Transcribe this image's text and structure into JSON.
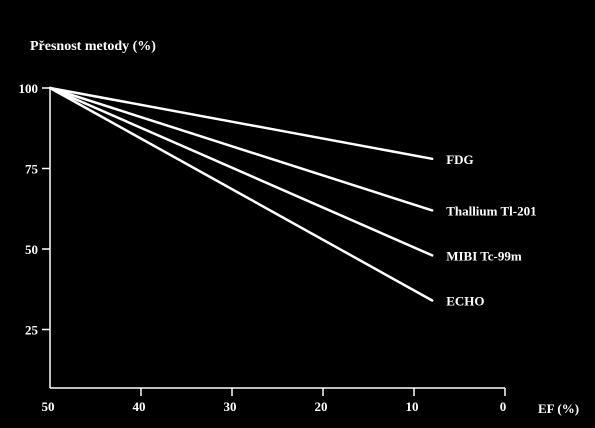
{
  "colors": {
    "background": "#000000",
    "foreground": "#ffffff"
  },
  "chart_data": {
    "type": "line",
    "title": "",
    "ylabel": "Přesnost metody (%)",
    "xlabel": "EF (%)",
    "xlim": [
      50,
      0
    ],
    "x_reversed": true,
    "x_ticks": [
      50,
      40,
      30,
      20,
      10,
      0
    ],
    "x_tick_labels": [
      "50",
      "40",
      "30",
      "20",
      "10",
      "0"
    ],
    "y_tick_labels": [
      {
        "value": 100,
        "label": "100"
      },
      {
        "value": 75,
        "label": "75"
      },
      {
        "value": 50,
        "label": "50"
      },
      {
        "value": 25,
        "label": "25"
      }
    ],
    "grid": false,
    "legend": "inline labels at line ends",
    "series": [
      {
        "name": "FDG",
        "x": [
          50,
          8
        ],
        "y": [
          100,
          78
        ]
      },
      {
        "name": "Thallium Tl-201",
        "x": [
          50,
          8
        ],
        "y": [
          100,
          62
        ]
      },
      {
        "name": "MIBI Tc-99m",
        "x": [
          50,
          8
        ],
        "y": [
          100,
          48
        ]
      },
      {
        "name": "ECHO",
        "x": [
          50,
          8
        ],
        "y": [
          100,
          34
        ]
      }
    ]
  }
}
